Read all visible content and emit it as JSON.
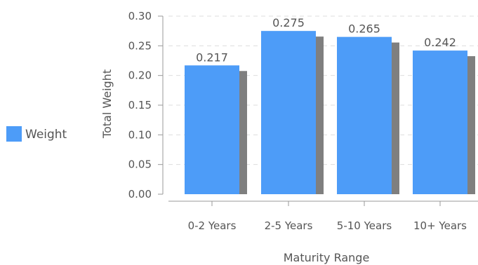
{
  "chart_data": {
    "type": "bar",
    "categories": [
      "0-2 Years",
      "2-5 Years",
      "5-10 Years",
      "10+ Years"
    ],
    "series": [
      {
        "name": "Weight",
        "values": [
          0.217,
          0.275,
          0.265,
          0.242
        ],
        "color": "#4d9cf8"
      }
    ],
    "data_labels": [
      "0.217",
      "0.275",
      "0.265",
      "0.242"
    ],
    "xlabel": "Maturity Range",
    "ylabel": "Total Weight",
    "ylim": [
      0,
      0.3
    ],
    "yticks": [
      "0.00",
      "0.05",
      "0.10",
      "0.15",
      "0.20",
      "0.25",
      "0.30"
    ],
    "grid": true,
    "legend_position": "left",
    "shadow_color": "#7f7f7f",
    "axis_color": "#999999",
    "grid_color": "#dddddd"
  }
}
